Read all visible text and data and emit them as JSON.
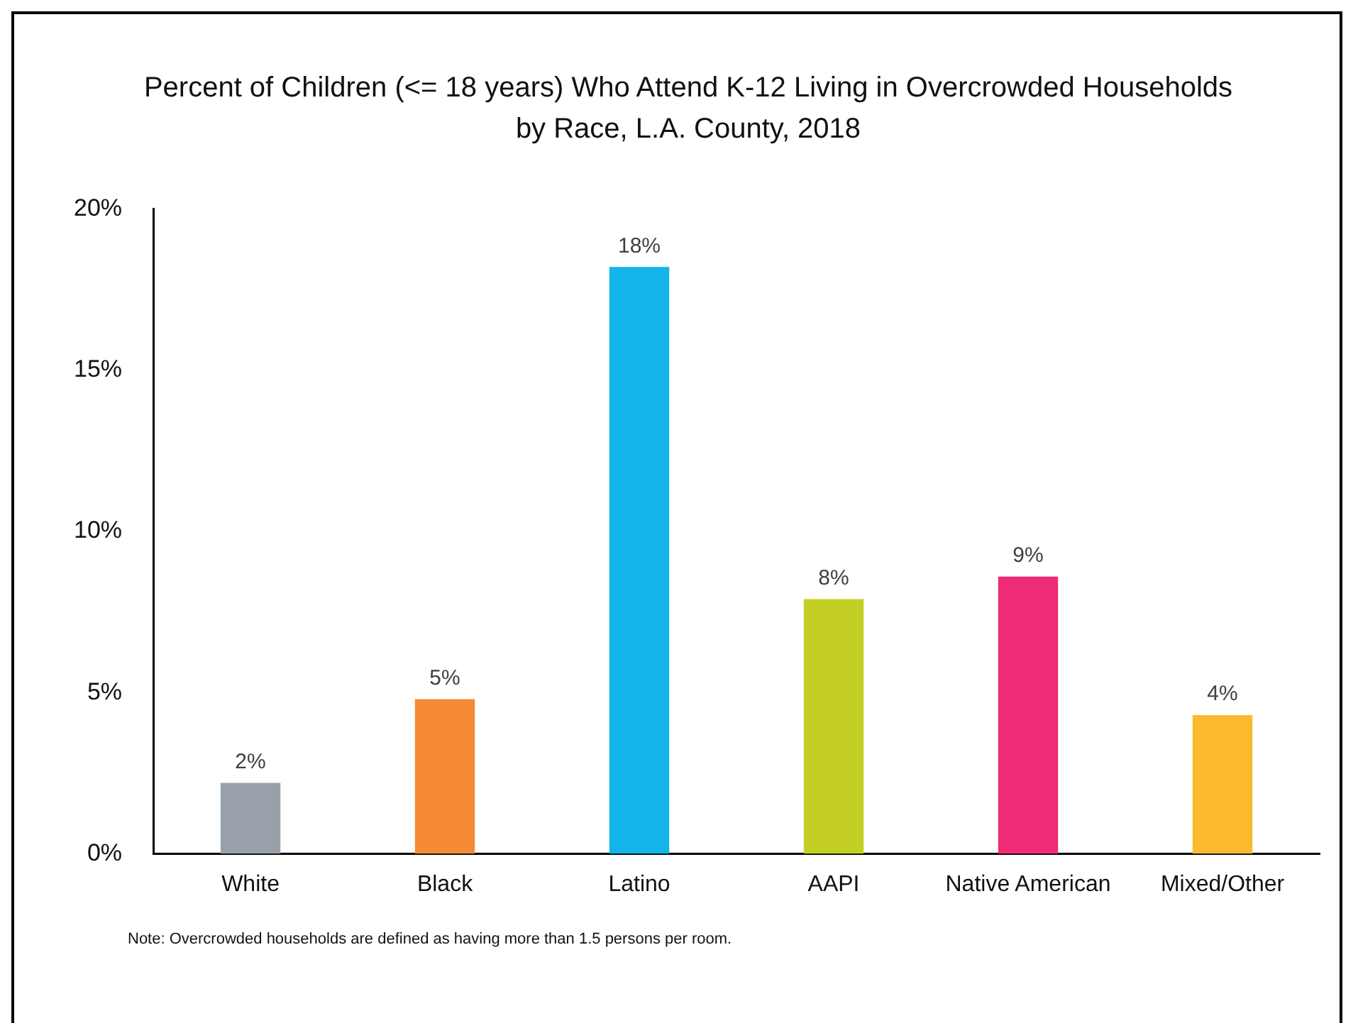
{
  "chart_data": {
    "type": "bar",
    "title": "Percent of Children (<= 18 years) Who Attend K-12 Living in Overcrowded Households by Race, L.A. County, 2018",
    "categories": [
      "White",
      "Black",
      "Latino",
      "AAPI",
      "Native American",
      "Mixed/Other"
    ],
    "values": [
      2.2,
      4.8,
      18.2,
      7.9,
      8.6,
      4.3
    ],
    "colors": [
      "#98a1a9",
      "#f58a35",
      "#13b4e8",
      "#c3cf24",
      "#ee2b74",
      "#fbb930"
    ],
    "value_labels": [
      "2%",
      "5%",
      "18%",
      "8%",
      "9%",
      "4%"
    ],
    "ylim": [
      0,
      20
    ],
    "yticks": [
      {
        "value": 0,
        "label": "0%"
      },
      {
        "value": 5,
        "label": "5%"
      },
      {
        "value": 10,
        "label": "10%"
      },
      {
        "value": 15,
        "label": "15%"
      },
      {
        "value": 20,
        "label": "20%"
      }
    ],
    "grid": false,
    "legend": false,
    "annotations": [
      "Note: Overcrowded households are defined as having more than 1.5 persons per room."
    ]
  }
}
